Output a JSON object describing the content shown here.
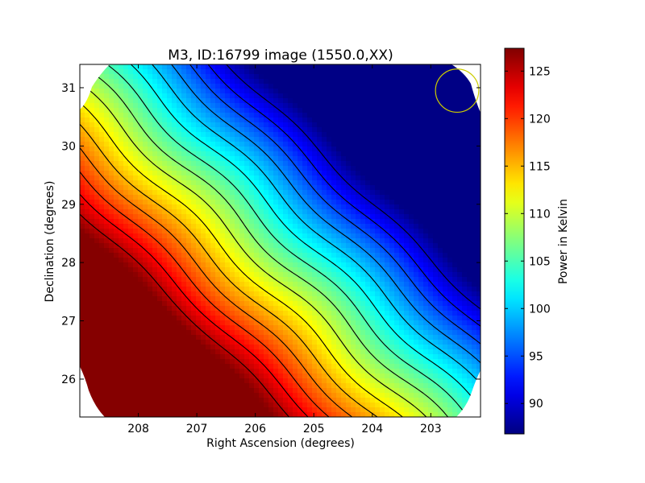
{
  "chart_data": {
    "type": "heatmap",
    "title": "M3, ID:16799 image (1550.0,XX)",
    "xlabel": "Right Ascension (degrees)",
    "ylabel": "Declination (degrees)",
    "xlim": [
      209.0,
      202.15
    ],
    "ylim": [
      25.35,
      31.4
    ],
    "x_ticks": [
      208,
      207,
      206,
      205,
      204,
      203
    ],
    "x_tick_labels": [
      "208",
      "207",
      "206",
      "205",
      "204",
      "203"
    ],
    "y_ticks": [
      26,
      27,
      28,
      29,
      30,
      31
    ],
    "y_tick_labels": [
      "26",
      "27",
      "28",
      "29",
      "30",
      "31"
    ],
    "colorbar": {
      "label": "Power in Kelvin",
      "range": [
        86.8,
        127.4
      ],
      "ticks": [
        90,
        95,
        100,
        105,
        110,
        115,
        120,
        125
      ],
      "tick_labels": [
        "90",
        "95",
        "100",
        "105",
        "110",
        "115",
        "120",
        "125"
      ],
      "colormap": "jet"
    },
    "field_model": {
      "description_of_values": "Power (K) over sky; hot spot near RA 208.4, Dec 26.0; cold region near RA 202.5, Dec 30.9",
      "hot_peak": {
        "ra": 208.45,
        "dec": 26.05,
        "value": 127
      },
      "cold_min": {
        "ra": 202.55,
        "dec": 30.9,
        "value": 87
      }
    },
    "contour_levels": [
      90,
      92.5,
      95,
      97.5,
      100,
      102.5,
      105,
      107.5,
      110,
      112.5,
      115,
      117.5,
      120,
      122.5,
      125
    ],
    "marker": {
      "type": "circle",
      "ra": 202.55,
      "dec": 30.95,
      "radius_deg": 0.37,
      "color": "#cccc00"
    },
    "grid": false
  }
}
